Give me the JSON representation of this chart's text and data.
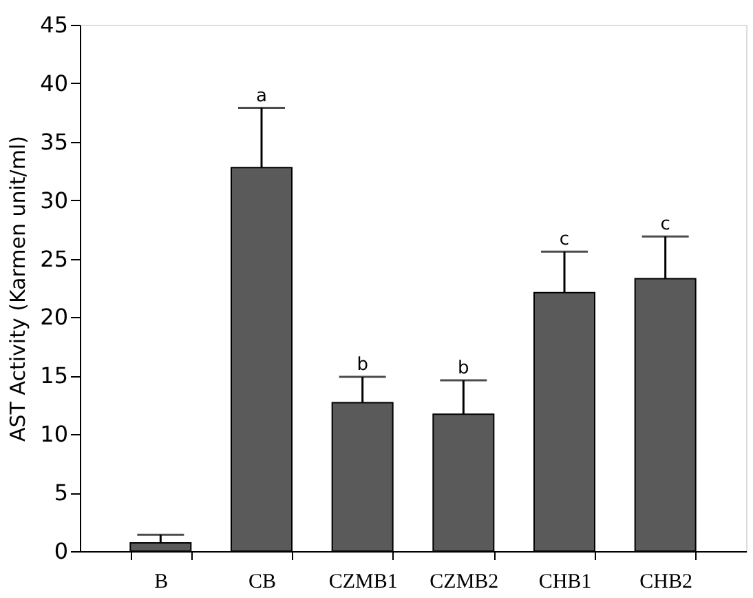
{
  "chart_data": {
    "type": "bar",
    "ylabel": "AST Activity (Karmen unit/ml)",
    "categories": [
      "B",
      "CB",
      "CZMB1",
      "CZMB2",
      "CHB1",
      "CHB2"
    ],
    "values": [
      0.7,
      32.8,
      12.7,
      11.7,
      22.1,
      23.3
    ],
    "errors": [
      [
        0.7,
        1.4
      ],
      [
        32.8,
        37.9
      ],
      [
        12.7,
        14.9
      ],
      [
        11.7,
        14.6
      ],
      [
        22.1,
        25.6
      ],
      [
        23.3,
        26.9
      ]
    ],
    "color": "#5a5a5a",
    "ylim": [
      0,
      45
    ],
    "yticks": [
      0,
      5,
      10,
      15,
      20,
      25,
      30,
      35,
      40,
      45
    ],
    "grid": false,
    "annotations": [
      {
        "text": "a",
        "x": "CB",
        "y": 37.9
      },
      {
        "text": "b",
        "x": "CZMB1",
        "y": 14.9
      },
      {
        "text": "b",
        "x": "CZMB2",
        "y": 14.6
      },
      {
        "text": "c",
        "x": "CHB1",
        "y": 25.6
      },
      {
        "text": "c",
        "x": "CHB2",
        "y": 26.9
      }
    ]
  }
}
